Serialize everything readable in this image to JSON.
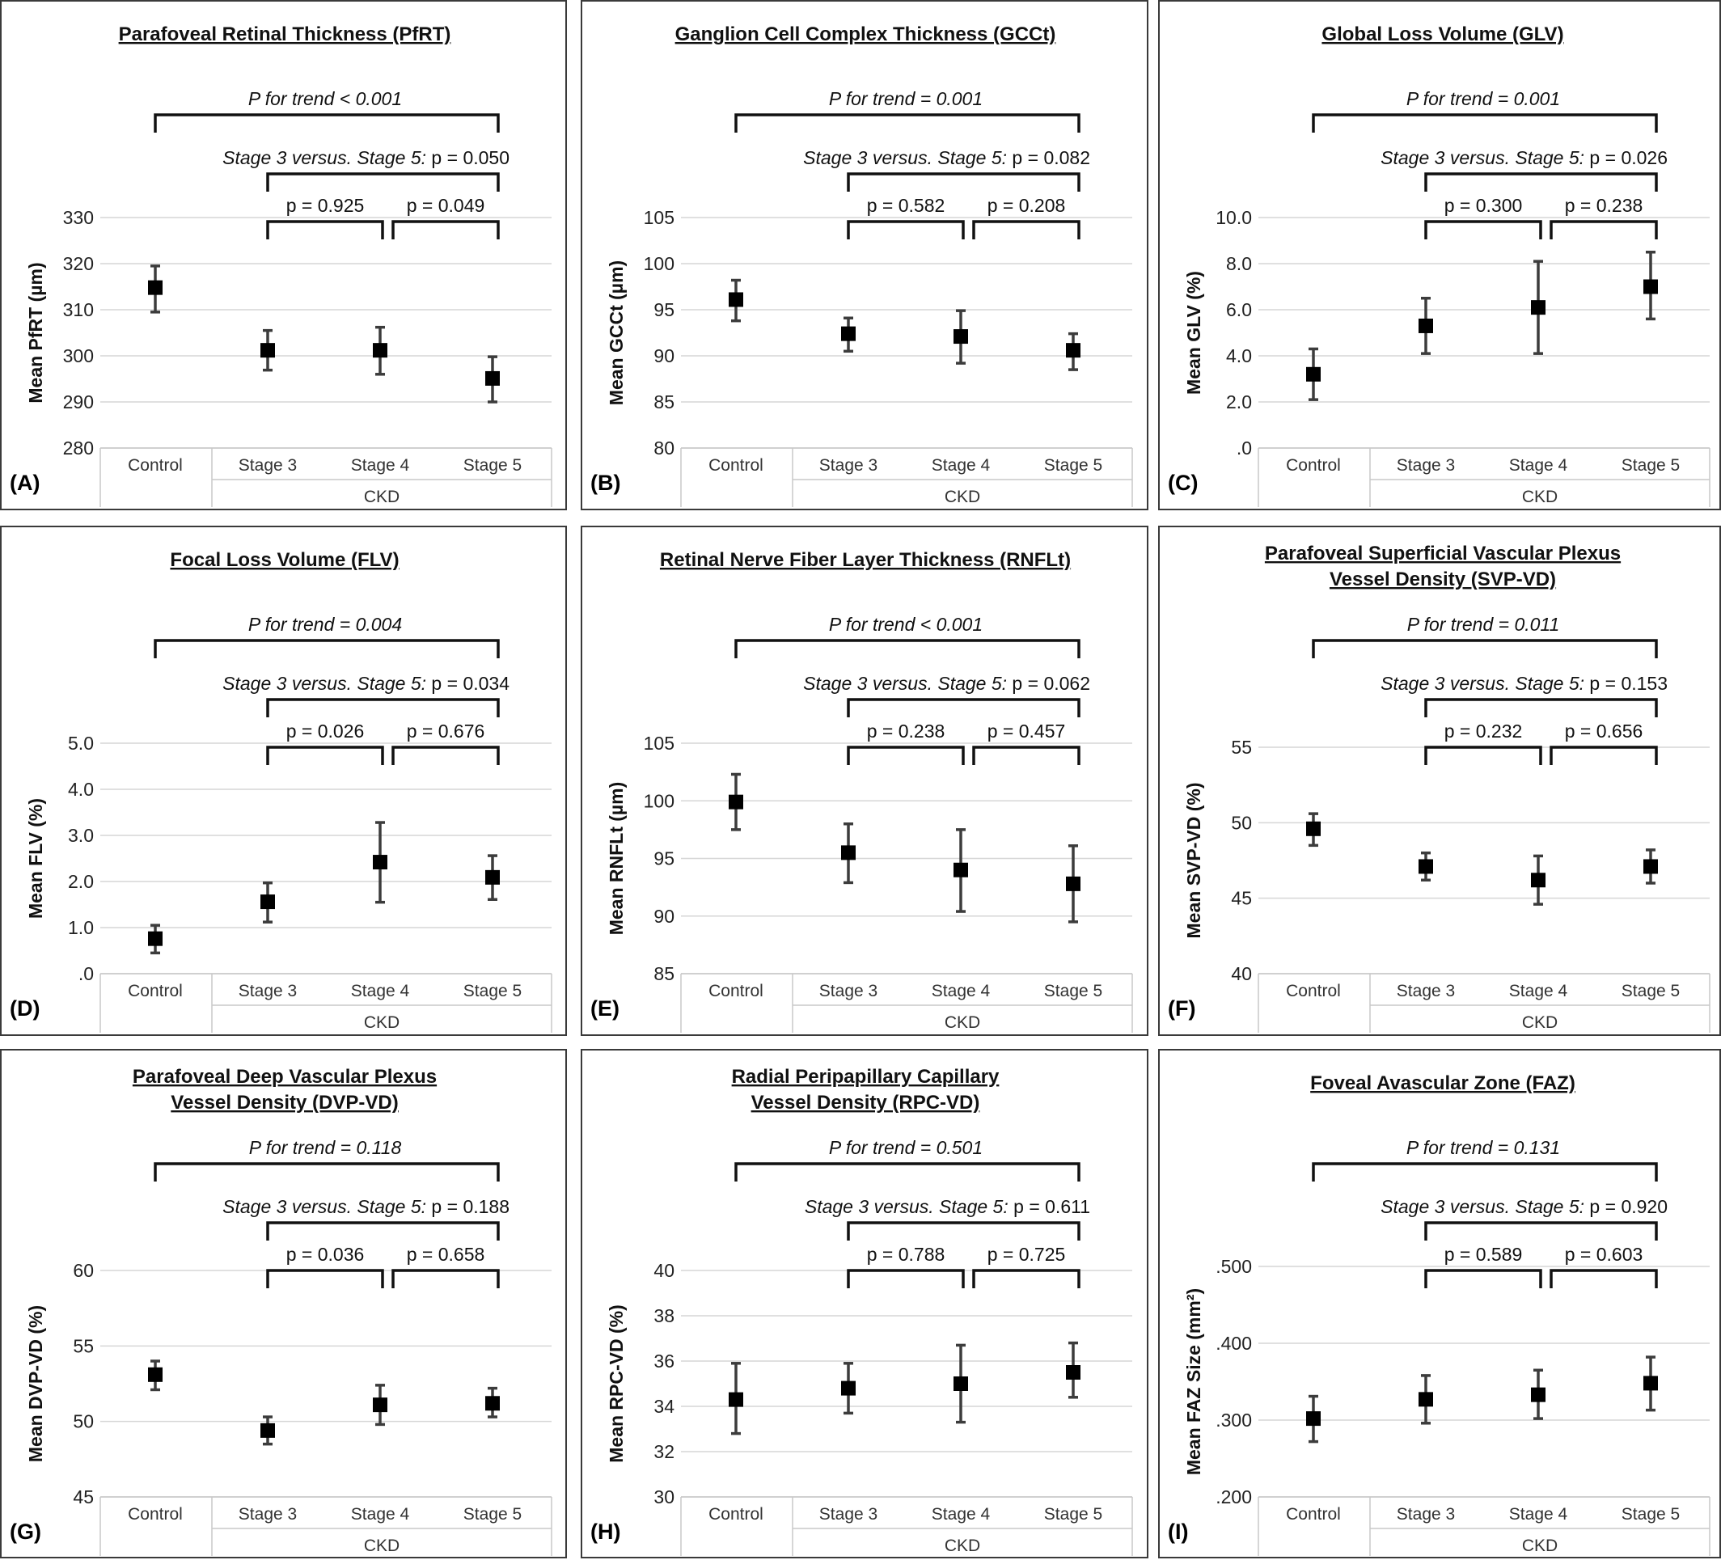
{
  "chart_data": [
    {
      "type": "scatter",
      "panel_label": "(A)",
      "title": [
        "Parafoveal Retinal Thickness (PfRT)"
      ],
      "ylabel": "Mean PfRT (µm)",
      "ylim": [
        280,
        330
      ],
      "yticks": [
        {
          "v": 280,
          "t": "280"
        },
        {
          "v": 290,
          "t": "290"
        },
        {
          "v": 300,
          "t": "300"
        },
        {
          "v": 310,
          "t": "310"
        },
        {
          "v": 320,
          "t": "320"
        },
        {
          "v": 330,
          "t": "330"
        }
      ],
      "categories": [
        "Control",
        "Stage 3",
        "Stage 4",
        "Stage 5"
      ],
      "group_label": "CKD",
      "values": [
        314.8,
        301.2,
        301.2,
        295.1
      ],
      "lower": [
        309.5,
        296.9,
        296.0,
        290.0
      ],
      "upper": [
        319.5,
        305.5,
        306.2,
        299.8
      ],
      "annotations": {
        "trend": "P for trend  < 0.001",
        "s35_prefix": "Stage 3  versus. Stage 5:",
        "s35_p": " p = 0.050",
        "s34": "p = 0.925",
        "s45": "p = 0.049"
      }
    },
    {
      "type": "scatter",
      "panel_label": "(B)",
      "title": [
        "Ganglion Cell Complex Thickness (GCCt)"
      ],
      "ylabel": "Mean GCCt (µm)",
      "ylim": [
        80,
        105
      ],
      "yticks": [
        {
          "v": 80,
          "t": "80"
        },
        {
          "v": 85,
          "t": "85"
        },
        {
          "v": 90,
          "t": "90"
        },
        {
          "v": 95,
          "t": "95"
        },
        {
          "v": 100,
          "t": "100"
        },
        {
          "v": 105,
          "t": "105"
        }
      ],
      "categories": [
        "Control",
        "Stage 3",
        "Stage 4",
        "Stage 5"
      ],
      "group_label": "CKD",
      "values": [
        96.1,
        92.4,
        92.1,
        90.6
      ],
      "lower": [
        93.8,
        90.5,
        89.2,
        88.5
      ],
      "upper": [
        98.2,
        94.1,
        94.9,
        92.4
      ],
      "annotations": {
        "trend": "P for trend = 0.001",
        "s35_prefix": "Stage 3  versus. Stage 5:",
        "s35_p": " p = 0.082",
        "s34": "p = 0.582",
        "s45": "p = 0.208"
      }
    },
    {
      "type": "scatter",
      "panel_label": "(C)",
      "title": [
        "Global Loss Volume (GLV)"
      ],
      "ylabel": "Mean GLV (%)",
      "ylim": [
        0,
        10
      ],
      "yticks": [
        {
          "v": 0,
          "t": ".0"
        },
        {
          "v": 2,
          "t": "2.0"
        },
        {
          "v": 4,
          "t": "4.0"
        },
        {
          "v": 6,
          "t": "6.0"
        },
        {
          "v": 8,
          "t": "8.0"
        },
        {
          "v": 10,
          "t": "10.0"
        }
      ],
      "categories": [
        "Control",
        "Stage 3",
        "Stage 4",
        "Stage 5"
      ],
      "group_label": "CKD",
      "values": [
        3.2,
        5.3,
        6.1,
        7.0
      ],
      "lower": [
        2.1,
        4.1,
        4.1,
        5.6
      ],
      "upper": [
        4.3,
        6.5,
        8.1,
        8.5
      ],
      "annotations": {
        "trend": "P for trend = 0.001",
        "s35_prefix": "Stage 3  versus. Stage 5:",
        "s35_p": " p = 0.026",
        "s34": "p = 0.300",
        "s45": "p = 0.238"
      }
    },
    {
      "type": "scatter",
      "panel_label": "(D)",
      "title": [
        "Focal Loss Volume (FLV)"
      ],
      "ylabel": "Mean FLV (%)",
      "ylim": [
        0,
        5
      ],
      "yticks": [
        {
          "v": 0,
          "t": ".0"
        },
        {
          "v": 1,
          "t": "1.0"
        },
        {
          "v": 2,
          "t": "2.0"
        },
        {
          "v": 3,
          "t": "3.0"
        },
        {
          "v": 4,
          "t": "4.0"
        },
        {
          "v": 5,
          "t": "5.0"
        }
      ],
      "categories": [
        "Control",
        "Stage 3",
        "Stage 4",
        "Stage 5"
      ],
      "group_label": "CKD",
      "values": [
        0.76,
        1.56,
        2.42,
        2.09
      ],
      "lower": [
        0.45,
        1.12,
        1.55,
        1.61
      ],
      "upper": [
        1.05,
        1.97,
        3.28,
        2.56
      ],
      "annotations": {
        "trend": "P for trend = 0.004",
        "s35_prefix": "Stage 3  versus. Stage 5:",
        "s35_p": " p = 0.034",
        "s34": "p = 0.026",
        "s45": "p = 0.676"
      }
    },
    {
      "type": "scatter",
      "panel_label": "(E)",
      "title": [
        "Retinal Nerve Fiber Layer Thickness (RNFLt)"
      ],
      "ylabel": "Mean RNFLt (µm)",
      "ylim": [
        85,
        105
      ],
      "yticks": [
        {
          "v": 85,
          "t": "85"
        },
        {
          "v": 90,
          "t": "90"
        },
        {
          "v": 95,
          "t": "95"
        },
        {
          "v": 100,
          "t": "100"
        },
        {
          "v": 105,
          "t": "105"
        }
      ],
      "categories": [
        "Control",
        "Stage 3",
        "Stage 4",
        "Stage 5"
      ],
      "group_label": "CKD",
      "values": [
        99.9,
        95.5,
        94.0,
        92.8
      ],
      "lower": [
        97.5,
        92.9,
        90.4,
        89.5
      ],
      "upper": [
        102.3,
        98.0,
        97.5,
        96.1
      ],
      "annotations": {
        "trend": "P for trend  < 0.001",
        "s35_prefix": "Stage 3  versus. Stage 5:",
        "s35_p": " p = 0.062",
        "s34": "p = 0.238",
        "s45": "p = 0.457"
      }
    },
    {
      "type": "scatter",
      "panel_label": "(F)",
      "title": [
        "Parafoveal Superficial Vascular Plexus",
        "Vessel Density (SVP-VD)"
      ],
      "ylabel": "Mean SVP-VD (%)",
      "ylim": [
        40,
        55
      ],
      "yticks": [
        {
          "v": 40,
          "t": "40"
        },
        {
          "v": 45,
          "t": "45"
        },
        {
          "v": 50,
          "t": "50"
        },
        {
          "v": 55,
          "t": "55"
        }
      ],
      "categories": [
        "Control",
        "Stage 3",
        "Stage 4",
        "Stage 5"
      ],
      "group_label": "CKD",
      "values": [
        49.6,
        47.1,
        46.2,
        47.1
      ],
      "lower": [
        48.5,
        46.2,
        44.6,
        46.0
      ],
      "upper": [
        50.6,
        48.0,
        47.8,
        48.2
      ],
      "annotations": {
        "trend": "P for trend = 0.011",
        "s35_prefix": "Stage 3  versus. Stage 5:",
        "s35_p": " p = 0.153",
        "s34": "p = 0.232",
        "s45": "p = 0.656"
      }
    },
    {
      "type": "scatter",
      "panel_label": "(G)",
      "title": [
        "Parafoveal Deep Vascular Plexus",
        "Vessel Density (DVP-VD)"
      ],
      "ylabel": "Mean DVP-VD (%)",
      "ylim": [
        45,
        60
      ],
      "yticks": [
        {
          "v": 45,
          "t": "45"
        },
        {
          "v": 50,
          "t": "50"
        },
        {
          "v": 55,
          "t": "55"
        },
        {
          "v": 60,
          "t": "60"
        }
      ],
      "categories": [
        "Control",
        "Stage 3",
        "Stage 4",
        "Stage 5"
      ],
      "group_label": "CKD",
      "values": [
        53.1,
        49.4,
        51.1,
        51.2
      ],
      "lower": [
        52.1,
        48.5,
        49.8,
        50.3
      ],
      "upper": [
        54.0,
        50.3,
        52.4,
        52.2
      ],
      "annotations": {
        "trend": "P for trend = 0.118",
        "s35_prefix": "Stage 3  versus. Stage 5:",
        "s35_p": " p = 0.188",
        "s34": "p = 0.036",
        "s45": "p = 0.658"
      }
    },
    {
      "type": "scatter",
      "panel_label": "(H)",
      "title": [
        "Radial Peripapillary Capillary",
        "Vessel Density (RPC-VD)"
      ],
      "ylabel": "Mean RPC-VD (%)",
      "ylim": [
        30,
        40
      ],
      "yticks": [
        {
          "v": 30,
          "t": "30"
        },
        {
          "v": 32,
          "t": "32"
        },
        {
          "v": 34,
          "t": "34"
        },
        {
          "v": 36,
          "t": "36"
        },
        {
          "v": 38,
          "t": "38"
        },
        {
          "v": 40,
          "t": "40"
        }
      ],
      "categories": [
        "Control",
        "Stage 3",
        "Stage 4",
        "Stage 5"
      ],
      "group_label": "CKD",
      "values": [
        34.3,
        34.8,
        35.0,
        35.5
      ],
      "lower": [
        32.8,
        33.7,
        33.3,
        34.4
      ],
      "upper": [
        35.9,
        35.9,
        36.7,
        36.8
      ],
      "annotations": {
        "trend": "P for trend = 0.501",
        "s35_prefix": "Stage 3  versus. Stage 5:",
        "s35_p": " p = 0.611",
        "s34": "p = 0.788",
        "s45": "p = 0.725"
      }
    },
    {
      "type": "scatter",
      "panel_label": "(I)",
      "title": [
        "Foveal Avascular Zone (FAZ)"
      ],
      "ylabel": "Mean FAZ Size (mm²)",
      "ylim": [
        0.2,
        0.5
      ],
      "yticks": [
        {
          "v": 0.2,
          "t": ".200"
        },
        {
          "v": 0.3,
          "t": ".300"
        },
        {
          "v": 0.4,
          "t": ".400"
        },
        {
          "v": 0.5,
          "t": ".500"
        }
      ],
      "categories": [
        "Control",
        "Stage 3",
        "Stage 4",
        "Stage 5"
      ],
      "group_label": "CKD",
      "values": [
        0.302,
        0.327,
        0.333,
        0.348
      ],
      "lower": [
        0.272,
        0.296,
        0.302,
        0.313
      ],
      "upper": [
        0.331,
        0.358,
        0.365,
        0.382
      ],
      "annotations": {
        "trend": "P for trend = 0.131",
        "s35_prefix": "Stage 3  versus. Stage 5:",
        "s35_p": " p = 0.920",
        "s34": "p = 0.589",
        "s45": "p = 0.603"
      }
    }
  ]
}
